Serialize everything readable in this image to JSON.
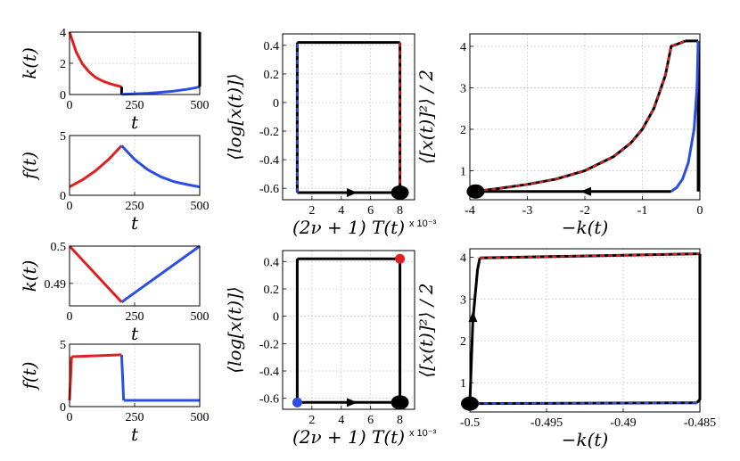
{
  "colors": {
    "red": "#e02020",
    "blue": "#2b4fe6",
    "black": "#000000",
    "grid": "#bdbdbd"
  },
  "chart_data": [
    {
      "id": "p1",
      "type": "line",
      "ylabel": "k(t)",
      "xlabel": "t",
      "xlim": [
        0,
        500
      ],
      "ylim": [
        0,
        4
      ],
      "xticks": [
        "0",
        "250",
        "500"
      ],
      "yticks": [
        "0",
        "2",
        "4"
      ],
      "series": [
        {
          "name": "red",
          "color": "red",
          "x": [
            0,
            25,
            50,
            75,
            100,
            125,
            150,
            175,
            200
          ],
          "y": [
            4.0,
            2.75,
            1.95,
            1.45,
            1.1,
            0.88,
            0.72,
            0.6,
            0.5
          ]
        },
        {
          "name": "jump-down",
          "color": "black",
          "x": [
            200,
            200
          ],
          "y": [
            0.5,
            0.02
          ]
        },
        {
          "name": "blue",
          "color": "blue",
          "x": [
            200,
            250,
            300,
            350,
            400,
            450,
            480,
            500
          ],
          "y": [
            0.02,
            0.04,
            0.08,
            0.14,
            0.22,
            0.33,
            0.42,
            0.5
          ]
        },
        {
          "name": "jump-up",
          "color": "black",
          "x": [
            500,
            500
          ],
          "y": [
            0.5,
            4.0
          ]
        }
      ]
    },
    {
      "id": "p2",
      "type": "line",
      "ylabel": "f(t)",
      "xlabel": "t",
      "xlim": [
        0,
        500
      ],
      "ylim": [
        0,
        5
      ],
      "xticks": [
        "0",
        "250",
        "500"
      ],
      "yticks": [
        "0",
        "5"
      ],
      "series": [
        {
          "name": "red",
          "color": "red",
          "x": [
            0,
            50,
            100,
            150,
            200
          ],
          "y": [
            0.7,
            1.3,
            2.05,
            3.0,
            4.15
          ]
        },
        {
          "name": "blue",
          "color": "blue",
          "x": [
            200,
            250,
            300,
            350,
            400,
            450,
            500
          ],
          "y": [
            4.15,
            3.0,
            2.15,
            1.55,
            1.15,
            0.9,
            0.7
          ]
        }
      ]
    },
    {
      "id": "p3",
      "type": "scatter",
      "ylabel": "⟨log[x(t)]⟩",
      "xlabel": "(2ν + 1) T(t)",
      "xlabel_suffix": "x 10⁻³",
      "xlim": [
        0,
        9
      ],
      "ylim": [
        -0.68,
        0.48
      ],
      "xticks": [
        "2",
        "4",
        "6",
        "8"
      ],
      "yticks": [
        "0.4",
        "0.2",
        "0",
        "-0.2",
        "-0.4",
        "-0.6"
      ],
      "series": [
        {
          "name": "top",
          "color": "black",
          "x": [
            1,
            8
          ],
          "y": [
            0.42,
            0.42
          ]
        },
        {
          "name": "right",
          "color": "black",
          "x": [
            8,
            8
          ],
          "y": [
            0.42,
            -0.63
          ]
        },
        {
          "name": "right-red-dash",
          "color": "red",
          "x": [
            8,
            8
          ],
          "y": [
            0.42,
            -0.63
          ]
        },
        {
          "name": "bottom",
          "color": "black",
          "x": [
            8,
            1
          ],
          "y": [
            -0.63,
            -0.63
          ]
        },
        {
          "name": "left",
          "color": "black",
          "x": [
            1,
            1
          ],
          "y": [
            -0.63,
            0.42
          ]
        },
        {
          "name": "left-blue-dash",
          "color": "blue",
          "x": [
            1,
            1
          ],
          "y": [
            -0.63,
            0.42
          ]
        }
      ],
      "markers": [
        {
          "x": 8,
          "y": -0.63,
          "color": "black"
        }
      ],
      "arrow": {
        "x": 4.8,
        "y": -0.63,
        "dir": "right"
      }
    },
    {
      "id": "p4",
      "type": "scatter",
      "ylabel": "⟨[x(t)]²⟩ / 2",
      "xlabel": "−k(t)",
      "xlim": [
        -4,
        0
      ],
      "ylim": [
        0.3,
        4.3
      ],
      "xticks": [
        "-4",
        "-3",
        "-2",
        "-1",
        "0"
      ],
      "yticks": [
        "1",
        "2",
        "3",
        "4"
      ],
      "series": [
        {
          "name": "bottom",
          "color": "black",
          "x": [
            -3.9,
            -0.5
          ],
          "y": [
            0.5,
            0.5
          ]
        },
        {
          "name": "curve",
          "color": "black",
          "x": [
            -3.9,
            -3.5,
            -3.0,
            -2.5,
            -2.0,
            -1.5,
            -1.2,
            -1.0,
            -0.8,
            -0.6,
            -0.5,
            -0.4,
            -0.3,
            -0.25
          ],
          "y": [
            0.5,
            0.57,
            0.67,
            0.8,
            1.0,
            1.34,
            1.67,
            2.0,
            2.5,
            3.3,
            4.0,
            4.05,
            4.1,
            4.13
          ]
        },
        {
          "name": "curve-red-dash",
          "color": "red",
          "x": [
            -3.9,
            -3.5,
            -3.0,
            -2.5,
            -2.0,
            -1.5,
            -1.2,
            -1.0,
            -0.8,
            -0.6,
            -0.5,
            -0.4,
            -0.3,
            -0.25
          ],
          "y": [
            0.5,
            0.57,
            0.67,
            0.8,
            1.0,
            1.34,
            1.67,
            2.0,
            2.5,
            3.3,
            4.0,
            4.05,
            4.1,
            4.13
          ]
        },
        {
          "name": "top",
          "color": "black",
          "x": [
            -0.25,
            -0.03
          ],
          "y": [
            4.13,
            4.13
          ]
        },
        {
          "name": "right",
          "color": "black",
          "x": [
            -0.03,
            -0.03
          ],
          "y": [
            4.13,
            0.5
          ]
        },
        {
          "name": "right-blue",
          "color": "blue",
          "x": [
            -0.03,
            -0.05,
            -0.1,
            -0.2,
            -0.3,
            -0.4,
            -0.5
          ],
          "y": [
            4.13,
            3.0,
            2.0,
            1.2,
            0.8,
            0.6,
            0.5
          ]
        }
      ],
      "markers": [
        {
          "x": -3.9,
          "y": 0.5,
          "color": "black"
        }
      ],
      "arrow": {
        "x": -2.0,
        "y": 0.5,
        "dir": "left"
      }
    },
    {
      "id": "p5",
      "type": "line",
      "ylabel": "k(t)",
      "xlabel": "t",
      "xlim": [
        0,
        500
      ],
      "ylim": [
        0.484,
        0.5
      ],
      "xticks": [
        "0",
        "250",
        "500"
      ],
      "yticks": [
        "0.5",
        "0.49"
      ],
      "series": [
        {
          "name": "red",
          "color": "red",
          "x": [
            0,
            200
          ],
          "y": [
            0.5,
            0.485
          ]
        },
        {
          "name": "blue",
          "color": "blue",
          "x": [
            200,
            500
          ],
          "y": [
            0.485,
            0.5
          ]
        }
      ]
    },
    {
      "id": "p6",
      "type": "line",
      "ylabel": "f(t)",
      "xlabel": "t",
      "xlim": [
        0,
        500
      ],
      "ylim": [
        0,
        5
      ],
      "xticks": [
        "0",
        "250",
        "500"
      ],
      "yticks": [
        "0",
        "5"
      ],
      "series": [
        {
          "name": "rise",
          "color": "red",
          "x": [
            0,
            8
          ],
          "y": [
            0.5,
            4.0
          ]
        },
        {
          "name": "red",
          "color": "red",
          "x": [
            8,
            200
          ],
          "y": [
            4.0,
            4.15
          ]
        },
        {
          "name": "drop",
          "color": "blue",
          "x": [
            200,
            208
          ],
          "y": [
            4.15,
            0.5
          ]
        },
        {
          "name": "blue",
          "color": "blue",
          "x": [
            208,
            500
          ],
          "y": [
            0.5,
            0.5
          ]
        }
      ]
    },
    {
      "id": "p7",
      "type": "scatter",
      "ylabel": "⟨log[x(t)]⟩",
      "xlabel": "(2ν + 1) T(t)",
      "xlabel_suffix": "x 10⁻³",
      "xlim": [
        0,
        9
      ],
      "ylim": [
        -0.68,
        0.48
      ],
      "xticks": [
        "2",
        "4",
        "6",
        "8"
      ],
      "yticks": [
        "0.4",
        "0.2",
        "0",
        "-0.2",
        "-0.4",
        "-0.6"
      ],
      "series": [
        {
          "name": "top",
          "color": "black",
          "x": [
            1,
            8
          ],
          "y": [
            0.42,
            0.42
          ]
        },
        {
          "name": "right",
          "color": "black",
          "x": [
            8,
            8
          ],
          "y": [
            0.42,
            -0.63
          ]
        },
        {
          "name": "bottom",
          "color": "black",
          "x": [
            8,
            1
          ],
          "y": [
            -0.63,
            -0.63
          ]
        },
        {
          "name": "left",
          "color": "black",
          "x": [
            1,
            1
          ],
          "y": [
            -0.63,
            0.42
          ]
        }
      ],
      "markers": [
        {
          "x": 8,
          "y": 0.42,
          "color": "red"
        },
        {
          "x": 1,
          "y": -0.63,
          "color": "blue"
        },
        {
          "x": 8,
          "y": -0.63,
          "color": "black"
        }
      ],
      "arrow": {
        "x": 4.8,
        "y": -0.63,
        "dir": "right"
      }
    },
    {
      "id": "p8",
      "type": "scatter",
      "ylabel": "⟨[x(t)]²⟩ / 2",
      "xlabel": "−k(t)",
      "xlim": [
        -0.5,
        -0.485
      ],
      "ylim": [
        0.3,
        4.2
      ],
      "xticks": [
        "-0.5",
        "-0.495",
        "-0.49",
        "-0.485"
      ],
      "yticks": [
        "1",
        "2",
        "3",
        "4"
      ],
      "series": [
        {
          "name": "left-rise",
          "color": "black",
          "x": [
            -0.5,
            -0.4998,
            -0.4995,
            -0.49935
          ],
          "y": [
            0.5,
            2.5,
            3.7,
            3.98
          ]
        },
        {
          "name": "top",
          "color": "black",
          "x": [
            -0.49935,
            -0.485
          ],
          "y": [
            3.98,
            4.08
          ]
        },
        {
          "name": "top-red-dash",
          "color": "red",
          "x": [
            -0.49935,
            -0.485
          ],
          "y": [
            3.98,
            4.08
          ]
        },
        {
          "name": "right-drop",
          "color": "black",
          "x": [
            -0.485,
            -0.485,
            -0.4852
          ],
          "y": [
            4.08,
            0.6,
            0.52
          ]
        },
        {
          "name": "bottom",
          "color": "black",
          "x": [
            -0.4852,
            -0.5
          ],
          "y": [
            0.52,
            0.5
          ]
        },
        {
          "name": "bottom-blue-dash",
          "color": "blue",
          "x": [
            -0.4852,
            -0.5
          ],
          "y": [
            0.52,
            0.5
          ]
        }
      ],
      "markers": [
        {
          "x": -0.5,
          "y": 0.5,
          "color": "black"
        }
      ],
      "arrow": {
        "x": -0.4998,
        "y": 2.6,
        "dir": "up"
      }
    }
  ]
}
